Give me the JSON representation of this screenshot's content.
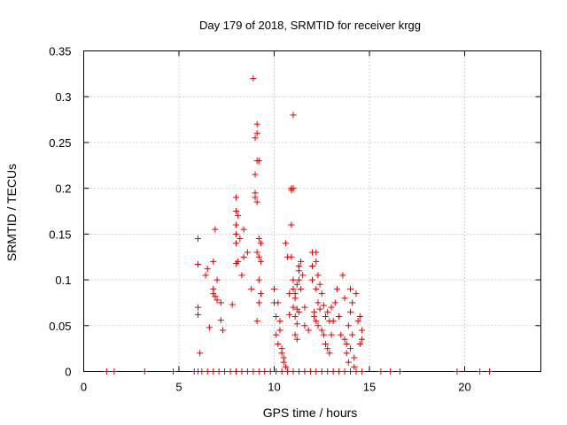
{
  "chart_data": {
    "type": "scatter",
    "title": "Day 179 of 2018, SRMTID for receiver krgg",
    "xlabel": "GPS time / hours",
    "ylabel": "SRMTID / TECUs",
    "xlim": [
      0,
      24
    ],
    "ylim": [
      0,
      0.35
    ],
    "xticks": [
      0,
      5,
      10,
      15,
      20
    ],
    "xtick_labels": [
      "0",
      "5",
      "10",
      "15",
      "20"
    ],
    "yticks": [
      0,
      0.05,
      0.1,
      0.15,
      0.2,
      0.25,
      0.3,
      0.35
    ],
    "ytick_labels": [
      "0",
      "0.05",
      "0.1",
      "0.15",
      "0.2",
      "0.25",
      "0.3",
      "0.35"
    ],
    "grid": true,
    "marker": "+",
    "color": "#e00000",
    "series": [
      {
        "name": "SRMTID",
        "points": [
          [
            1.2,
            0
          ],
          [
            1.6,
            0
          ],
          [
            3.2,
            0
          ],
          [
            4.7,
            0
          ],
          [
            5.8,
            0
          ],
          [
            6.0,
            0
          ],
          [
            6.2,
            0
          ],
          [
            6.5,
            0
          ],
          [
            6.8,
            0
          ],
          [
            7.1,
            0
          ],
          [
            7.4,
            0
          ],
          [
            7.7,
            0
          ],
          [
            8.0,
            0
          ],
          [
            8.3,
            0
          ],
          [
            8.6,
            0
          ],
          [
            8.9,
            0
          ],
          [
            9.2,
            0
          ],
          [
            9.5,
            0
          ],
          [
            9.8,
            0
          ],
          [
            10.1,
            0
          ],
          [
            10.4,
            0
          ],
          [
            10.7,
            0
          ],
          [
            11.0,
            0
          ],
          [
            11.3,
            0
          ],
          [
            11.6,
            0
          ],
          [
            11.9,
            0
          ],
          [
            12.2,
            0
          ],
          [
            12.5,
            0
          ],
          [
            12.8,
            0
          ],
          [
            13.1,
            0
          ],
          [
            13.4,
            0
          ],
          [
            13.7,
            0
          ],
          [
            14.0,
            0
          ],
          [
            14.3,
            0
          ],
          [
            14.6,
            0
          ],
          [
            15.6,
            0
          ],
          [
            16.1,
            0
          ],
          [
            16.6,
            0
          ],
          [
            19.6,
            0
          ],
          [
            20.8,
            0
          ],
          [
            21.3,
            0
          ],
          [
            6.0,
            0.145
          ],
          [
            6.0,
            0.117
          ],
          [
            6.0,
            0.07
          ],
          [
            6.0,
            0.062
          ],
          [
            6.1,
            0.02
          ],
          [
            6.4,
            0.105
          ],
          [
            6.5,
            0.112
          ],
          [
            6.6,
            0.048
          ],
          [
            6.8,
            0.12
          ],
          [
            6.8,
            0.09
          ],
          [
            6.8,
            0.085
          ],
          [
            6.9,
            0.155
          ],
          [
            6.9,
            0.082
          ],
          [
            7.0,
            0.1
          ],
          [
            7.0,
            0.078
          ],
          [
            7.2,
            0.075
          ],
          [
            7.2,
            0.056
          ],
          [
            7.3,
            0.045
          ],
          [
            7.8,
            0.073
          ],
          [
            8.0,
            0.19
          ],
          [
            8.0,
            0.175
          ],
          [
            8.0,
            0.16
          ],
          [
            8.0,
            0.15
          ],
          [
            8.0,
            0.14
          ],
          [
            8.0,
            0.118
          ],
          [
            8.1,
            0.12
          ],
          [
            8.1,
            0.17
          ],
          [
            8.2,
            0.145
          ],
          [
            8.3,
            0.105
          ],
          [
            8.4,
            0.155
          ],
          [
            8.4,
            0.125
          ],
          [
            8.6,
            0.13
          ],
          [
            8.8,
            0.09
          ],
          [
            8.9,
            0.32
          ],
          [
            9.0,
            0.255
          ],
          [
            9.0,
            0.215
          ],
          [
            9.0,
            0.195
          ],
          [
            9.0,
            0.19
          ],
          [
            9.1,
            0.27
          ],
          [
            9.1,
            0.26
          ],
          [
            9.1,
            0.23
          ],
          [
            9.1,
            0.185
          ],
          [
            9.1,
            0.13
          ],
          [
            9.1,
            0.055
          ],
          [
            9.2,
            0.23
          ],
          [
            9.2,
            0.145
          ],
          [
            9.2,
            0.125
          ],
          [
            9.2,
            0.1
          ],
          [
            9.2,
            0.075
          ],
          [
            9.3,
            0.12
          ],
          [
            9.3,
            0.14
          ],
          [
            9.3,
            0.085
          ],
          [
            10.0,
            0.09
          ],
          [
            10.0,
            0.075
          ],
          [
            10.1,
            0.06
          ],
          [
            10.1,
            0.04
          ],
          [
            10.2,
            0.03
          ],
          [
            10.2,
            0.075
          ],
          [
            10.3,
            0.055
          ],
          [
            10.3,
            0.045
          ],
          [
            10.4,
            0.025
          ],
          [
            10.4,
            0.02
          ],
          [
            10.5,
            0.015
          ],
          [
            10.5,
            0.01
          ],
          [
            10.6,
            0.005
          ],
          [
            10.6,
            0.14
          ],
          [
            10.7,
            0.125
          ],
          [
            10.8,
            0.085
          ],
          [
            10.8,
            0.062
          ],
          [
            10.9,
            0.2
          ],
          [
            10.9,
            0.198
          ],
          [
            10.9,
            0.16
          ],
          [
            10.9,
            0.125
          ],
          [
            11.0,
            0.28
          ],
          [
            11.0,
            0.2
          ],
          [
            11.0,
            0.1
          ],
          [
            11.0,
            0.09
          ],
          [
            11.0,
            0.07
          ],
          [
            11.1,
            0.085
          ],
          [
            11.1,
            0.08
          ],
          [
            11.1,
            0.06
          ],
          [
            11.1,
            0.04
          ],
          [
            11.2,
            0.095
          ],
          [
            11.2,
            0.068
          ],
          [
            11.2,
            0.052
          ],
          [
            11.2,
            0.035
          ],
          [
            11.3,
            0.115
          ],
          [
            11.3,
            0.11
          ],
          [
            11.3,
            0.1
          ],
          [
            11.3,
            0.065
          ],
          [
            11.4,
            0.12
          ],
          [
            11.4,
            0.09
          ],
          [
            11.5,
            0.105
          ],
          [
            11.6,
            0.07
          ],
          [
            11.6,
            0.05
          ],
          [
            11.8,
            0.045
          ],
          [
            12.0,
            0.13
          ],
          [
            12.0,
            0.115
          ],
          [
            12.0,
            0.1
          ],
          [
            12.1,
            0.065
          ],
          [
            12.1,
            0.06
          ],
          [
            12.2,
            0.13
          ],
          [
            12.2,
            0.12
          ],
          [
            12.2,
            0.09
          ],
          [
            12.2,
            0.055
          ],
          [
            12.3,
            0.105
          ],
          [
            12.3,
            0.075
          ],
          [
            12.3,
            0.05
          ],
          [
            12.4,
            0.095
          ],
          [
            12.4,
            0.068
          ],
          [
            12.5,
            0.085
          ],
          [
            12.5,
            0.045
          ],
          [
            12.6,
            0.04
          ],
          [
            12.6,
            0.072
          ],
          [
            12.7,
            0.06
          ],
          [
            12.7,
            0.03
          ],
          [
            12.8,
            0.065
          ],
          [
            12.8,
            0.025
          ],
          [
            12.9,
            0.055
          ],
          [
            12.9,
            0.02
          ],
          [
            13.0,
            0.07
          ],
          [
            13.0,
            0.04
          ],
          [
            13.1,
            0.055
          ],
          [
            13.2,
            0.075
          ],
          [
            13.3,
            0.09
          ],
          [
            13.4,
            0.06
          ],
          [
            13.5,
            0.04
          ],
          [
            13.6,
            0.105
          ],
          [
            13.7,
            0.08
          ],
          [
            13.7,
            0.035
          ],
          [
            13.8,
            0.03
          ],
          [
            13.8,
            0.02
          ],
          [
            13.9,
            0.05
          ],
          [
            13.9,
            0.01
          ],
          [
            14.0,
            0.09
          ],
          [
            14.0,
            0.065
          ],
          [
            14.0,
            0.025
          ],
          [
            14.1,
            0.075
          ],
          [
            14.1,
            0.04
          ],
          [
            14.2,
            0.015
          ],
          [
            14.2,
            0.005
          ],
          [
            14.3,
            0.085
          ],
          [
            14.4,
            0.055
          ],
          [
            14.5,
            0.03
          ],
          [
            14.5,
            0.06
          ],
          [
            14.6,
            0.045
          ],
          [
            14.6,
            0.035
          ]
        ]
      }
    ]
  }
}
